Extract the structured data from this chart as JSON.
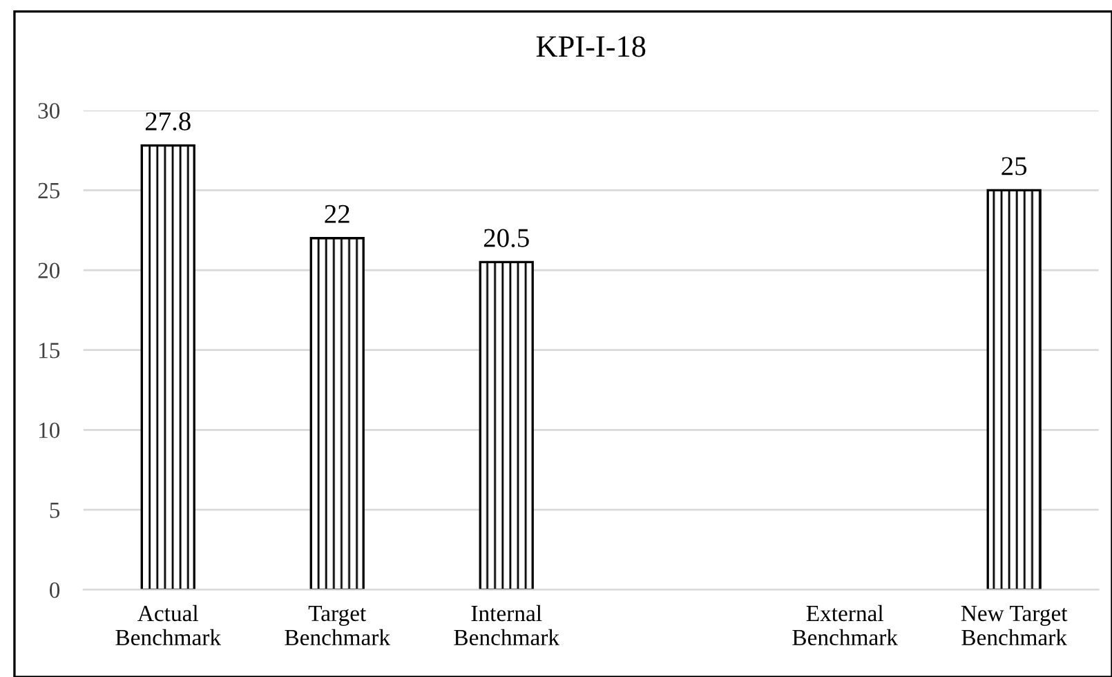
{
  "chart_data": {
    "type": "bar",
    "title": "KPI-I-18",
    "categories": [
      "Actual\nBenchmark",
      "Target\nBenchmark",
      "Internal\nBenchmark",
      null,
      "External\nBenchmark",
      "New Target\nBenchmark"
    ],
    "values": [
      27.8,
      22,
      20.5,
      null,
      null,
      25
    ],
    "color": "#000000",
    "ylim": [
      0,
      30
    ],
    "yticks": [
      0,
      5,
      10,
      15,
      20,
      25,
      30
    ],
    "grid": "y",
    "data_labels": true
  }
}
